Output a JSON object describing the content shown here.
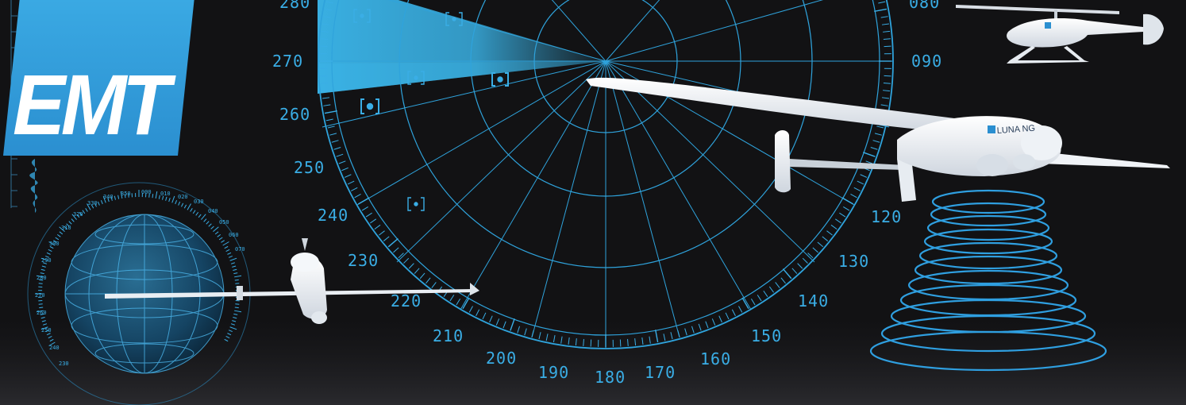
{
  "logo": {
    "text": "EMT"
  },
  "drone": {
    "label": "LUNA NG"
  },
  "radar": {
    "labels_left": [
      {
        "id": "280",
        "text": "280"
      },
      {
        "id": "270",
        "text": "270"
      },
      {
        "id": "260",
        "text": "260"
      },
      {
        "id": "250",
        "text": "250"
      },
      {
        "id": "240",
        "text": "240"
      },
      {
        "id": "230",
        "text": "230"
      },
      {
        "id": "220",
        "text": "220"
      },
      {
        "id": "210",
        "text": "210"
      },
      {
        "id": "200",
        "text": "200"
      },
      {
        "id": "190",
        "text": "190"
      }
    ],
    "labels_right": [
      {
        "id": "180",
        "text": "180"
      },
      {
        "id": "170",
        "text": "170"
      },
      {
        "id": "160",
        "text": "160"
      },
      {
        "id": "150",
        "text": "150"
      },
      {
        "id": "140",
        "text": "140"
      },
      {
        "id": "130",
        "text": "130"
      },
      {
        "id": "120",
        "text": "120"
      },
      {
        "id": "090",
        "text": "090"
      },
      {
        "id": "080",
        "text": "080"
      }
    ]
  },
  "globe_scale": {
    "labels": [
      "350",
      "000",
      "010",
      "020",
      "340",
      "330",
      "320",
      "310",
      "300",
      "290",
      "280",
      "270",
      "260",
      "250",
      "240",
      "230",
      "030",
      "040",
      "050",
      "060",
      "070"
    ]
  },
  "colors": {
    "background": "#121214",
    "accent": "#3aaee6",
    "logo_blue": "#3aa9e3",
    "white": "#ffffff"
  }
}
